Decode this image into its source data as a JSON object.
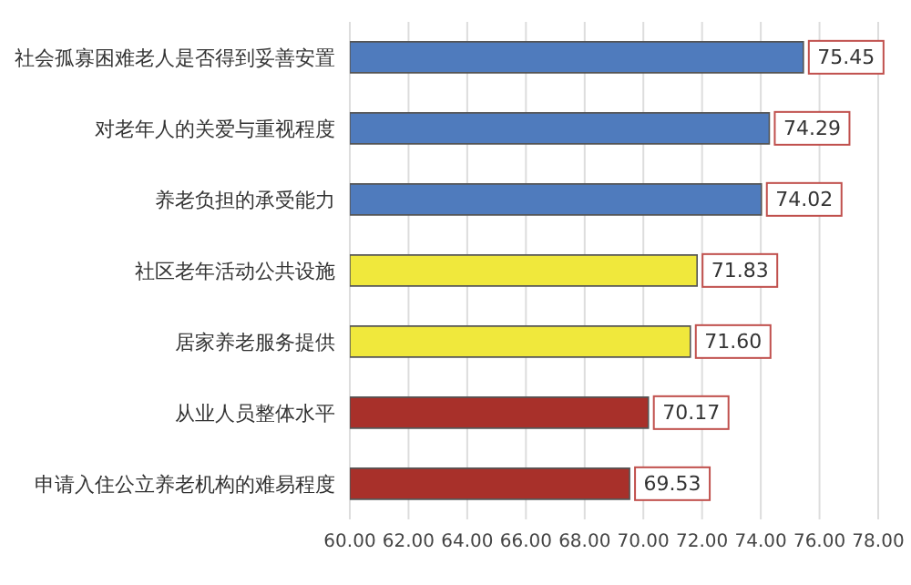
{
  "chart_data": {
    "type": "bar",
    "orientation": "horizontal",
    "categories": [
      "社会孤寡困难老人是否得到妥善安置",
      "对老年人的关爱与重视程度",
      "养老负担的承受能力",
      "社区老年活动公共设施",
      "居家养老服务提供",
      "从业人员整体水平",
      "申请入住公立养老机构的难易程度"
    ],
    "values": [
      75.45,
      74.29,
      74.02,
      71.83,
      71.6,
      70.17,
      69.53
    ],
    "value_labels": [
      "75.45",
      "74.29",
      "74.02",
      "71.83",
      "71.60",
      "70.17",
      "69.53"
    ],
    "colors": [
      "#4f7bbd",
      "#4f7bbd",
      "#4f7bbd",
      "#f0e83c",
      "#f0e83c",
      "#a8302a",
      "#a8302a"
    ],
    "xlim": [
      60,
      78
    ],
    "xticks": [
      {
        "value": 60,
        "label": "60.00"
      },
      {
        "value": 62,
        "label": "62.00"
      },
      {
        "value": 64,
        "label": "64.00"
      },
      {
        "value": 66,
        "label": "66.00"
      },
      {
        "value": 68,
        "label": "68.00"
      },
      {
        "value": 70,
        "label": "70.00"
      },
      {
        "value": 72,
        "label": "72.00"
      },
      {
        "value": 74,
        "label": "74.00"
      },
      {
        "value": 76,
        "label": "76.00"
      },
      {
        "value": 78,
        "label": "78.00"
      }
    ],
    "grid": "x"
  }
}
